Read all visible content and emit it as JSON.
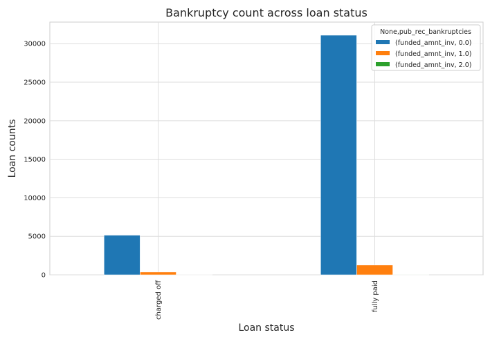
{
  "chart_data": {
    "type": "bar",
    "title": "Bankruptcy count across loan status",
    "xlabel": "Loan status",
    "ylabel": "Loan counts",
    "categories": [
      "charged off",
      "fully paid"
    ],
    "series": [
      {
        "name": "(funded_amnt_inv, 0.0)",
        "color": "#1f77b4",
        "values": [
          5150,
          31100
        ]
      },
      {
        "name": "(funded_amnt_inv, 1.0)",
        "color": "#ff7f0e",
        "values": [
          370,
          1270
        ]
      },
      {
        "name": "(funded_amnt_inv, 2.0)",
        "color": "#2ca02c",
        "values": [
          2,
          5
        ]
      }
    ],
    "ylim": [
      0,
      32800
    ],
    "yticks": [
      0,
      5000,
      10000,
      15000,
      20000,
      25000,
      30000
    ],
    "legend_title": "None,pub_rec_bankruptcies",
    "legend_position": "top-right",
    "grid": true
  }
}
